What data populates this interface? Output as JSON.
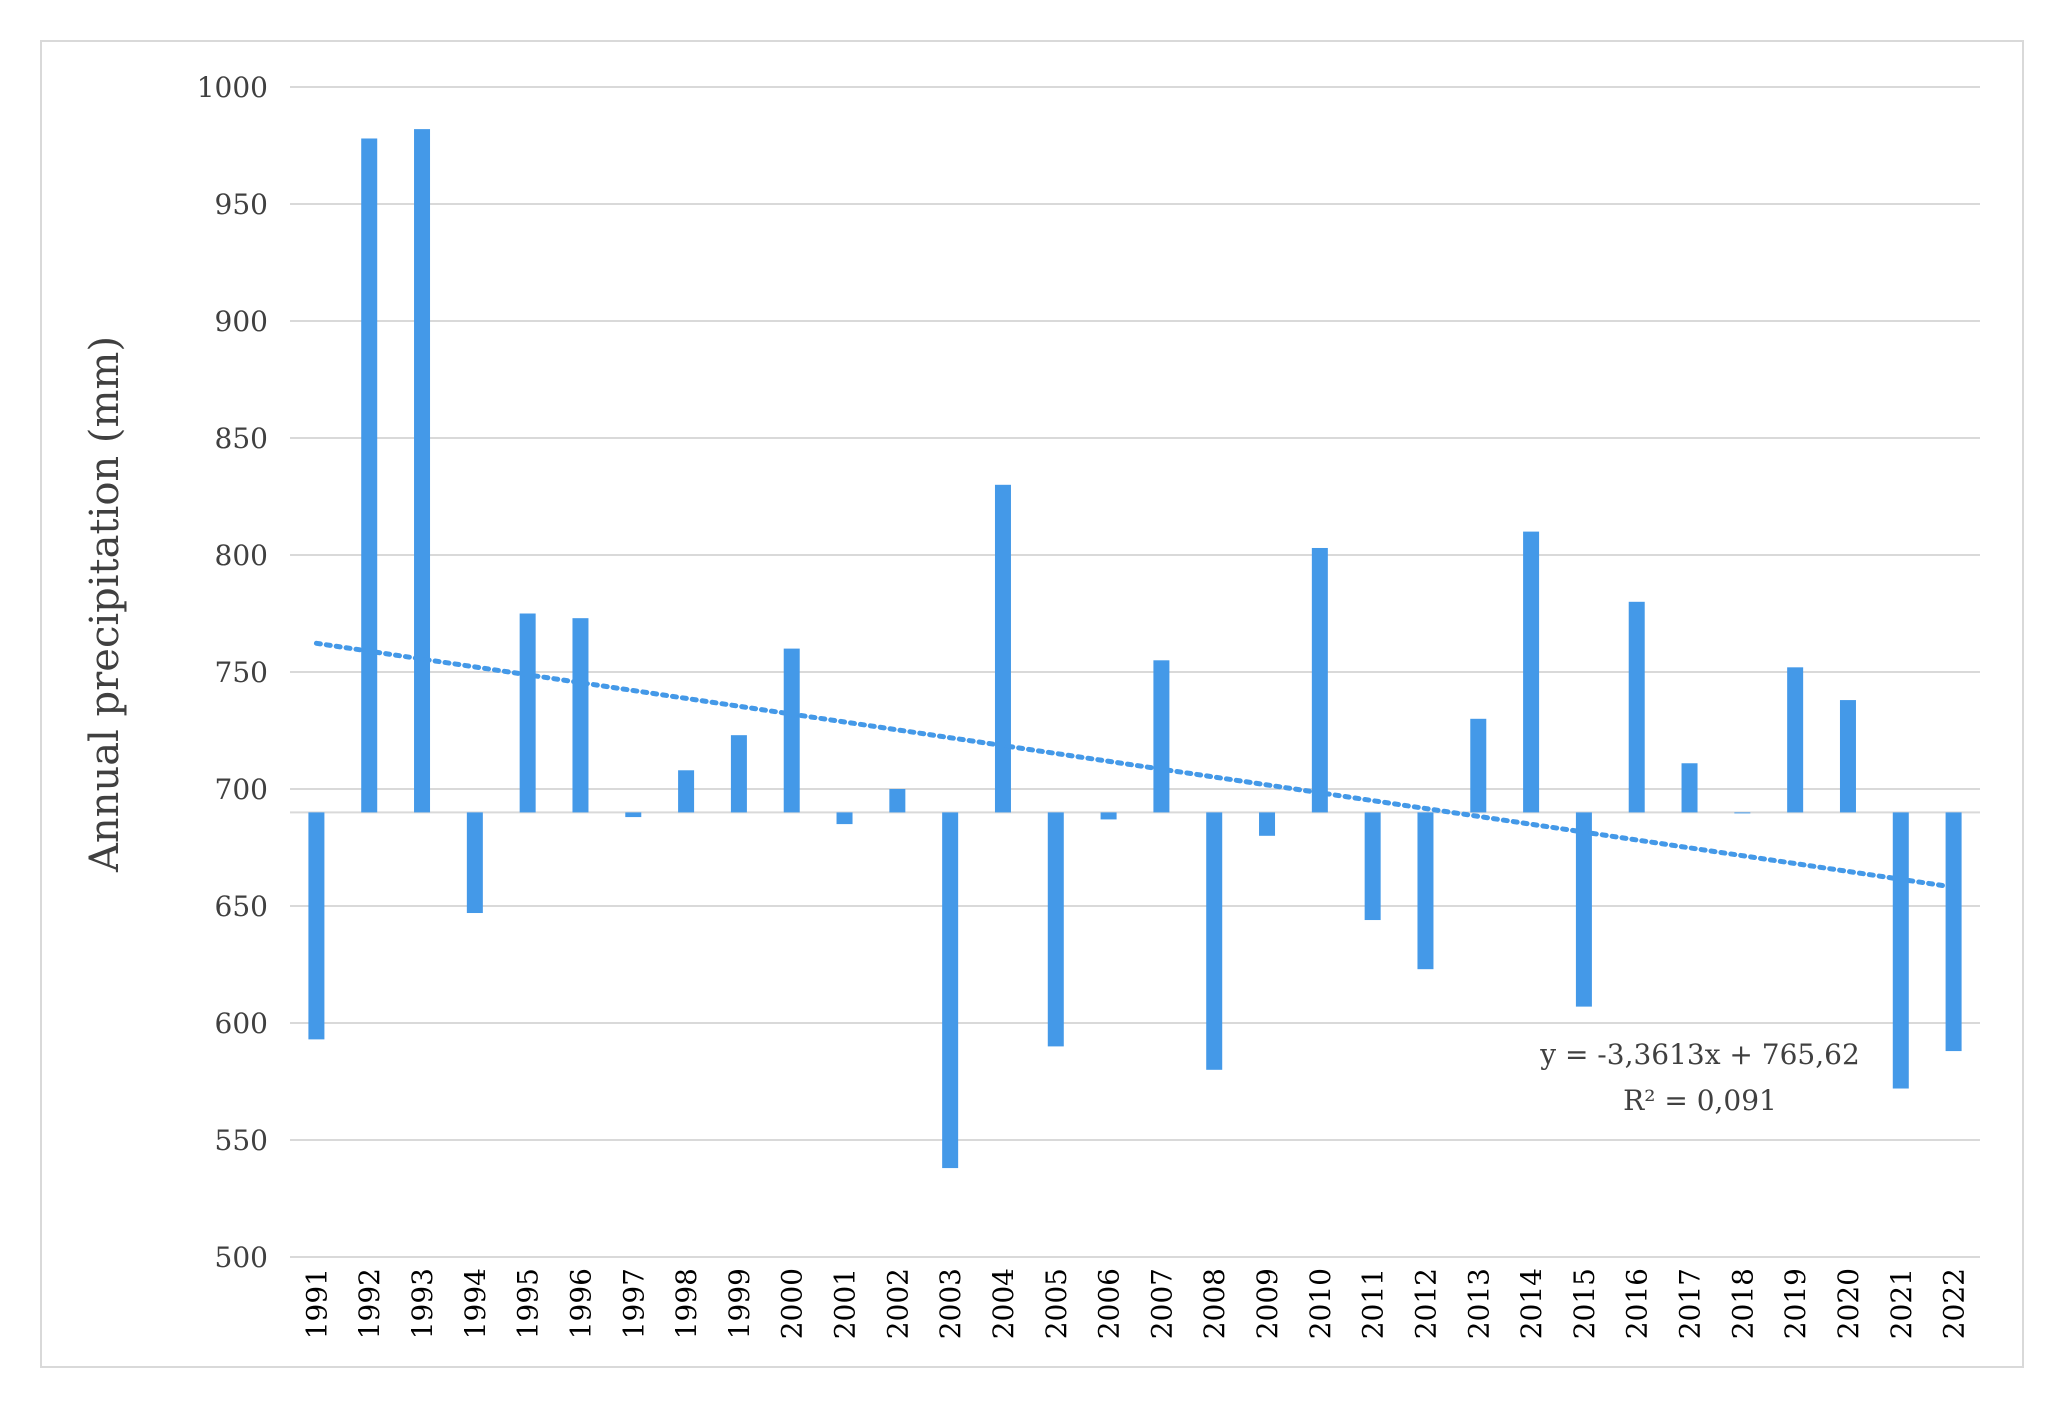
{
  "chart_data": {
    "type": "bar",
    "ylabel": "Annual precipitation (mm)",
    "xlabel": "",
    "ylim": [
      500,
      1000
    ],
    "yticks": [
      500,
      550,
      600,
      650,
      700,
      750,
      800,
      850,
      900,
      950,
      1000
    ],
    "baseline": 690,
    "grid": true,
    "categories": [
      "1991",
      "1992",
      "1993",
      "1994",
      "1995",
      "1996",
      "1997",
      "1998",
      "1999",
      "2000",
      "2001",
      "2002",
      "2003",
      "2004",
      "2005",
      "2006",
      "2007",
      "2008",
      "2009",
      "2010",
      "2011",
      "2012",
      "2013",
      "2014",
      "2015",
      "2016",
      "2017",
      "2018",
      "2019",
      "2020",
      "2021",
      "2022"
    ],
    "values": [
      593,
      978,
      982,
      647,
      775,
      773,
      688,
      708,
      723,
      760,
      685,
      700,
      538,
      830,
      590,
      687,
      755,
      580,
      680,
      803,
      644,
      623,
      730,
      810,
      607,
      780,
      711,
      690,
      752,
      738,
      572,
      588
    ],
    "trendline": {
      "style": "dotted",
      "slope": -3.3613,
      "intercept": 765.62,
      "equation": "y = -3,3613x + 765,62",
      "r2": "R² = 0,091"
    },
    "colors": {
      "bar": "#4499e8",
      "trend": "#4499e8",
      "grid": "#d9d9d9"
    }
  }
}
